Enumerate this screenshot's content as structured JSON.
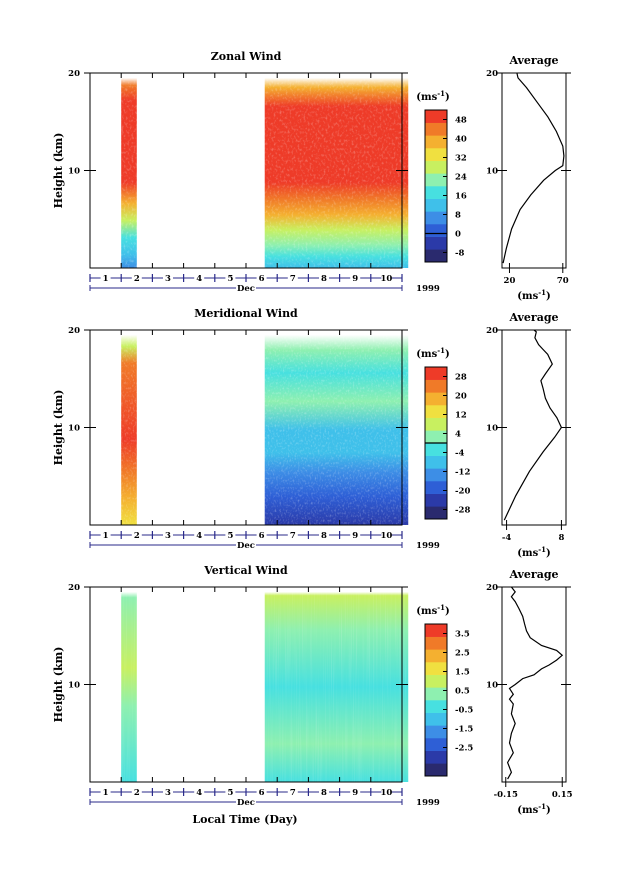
{
  "x_axis": {
    "day_ticks": [
      "1",
      "2",
      "3",
      "4",
      "5",
      "6",
      "7",
      "8",
      "9",
      "10"
    ],
    "month": "Dec",
    "year": "1999",
    "xlabel": "Local Time (Day)"
  },
  "chart_data": [
    {
      "type": "heatmap",
      "title": "Zonal Wind",
      "ylabel": "Height (km)",
      "yticks": [
        "10",
        "20"
      ],
      "ylim": [
        0,
        20
      ],
      "data_blocks_days": [
        [
          1.0,
          1.5
        ],
        [
          5.6,
          10.2
        ]
      ],
      "colorbar": {
        "unit_label": "(ms",
        "unit_exp": "-1",
        "unit_close": ")",
        "ticks": [
          "48",
          "40",
          "32",
          "24",
          "16",
          "8",
          "0",
          "-8"
        ],
        "range": [
          -12,
          52
        ],
        "zero_contour": 0
      },
      "average_profile": {
        "title": "Average",
        "xticks": [
          "20",
          "70"
        ],
        "xlim": [
          13,
          73
        ],
        "xlabel": "(ms",
        "xlabel_exp": "-1",
        "xlabel_close": ")",
        "yticks": [
          "10",
          "20"
        ],
        "points": [
          [
            14,
            0.5
          ],
          [
            17,
            2
          ],
          [
            22,
            4
          ],
          [
            30,
            6
          ],
          [
            40,
            7.5
          ],
          [
            52,
            9
          ],
          [
            63,
            10
          ],
          [
            70,
            10.5
          ],
          [
            71,
            11.5
          ],
          [
            70,
            12.5
          ],
          [
            64,
            14
          ],
          [
            56,
            15.5
          ],
          [
            46,
            17
          ],
          [
            36,
            18.5
          ],
          [
            28,
            19.5
          ],
          [
            27,
            20
          ]
        ]
      }
    },
    {
      "type": "heatmap",
      "title": "Meridional Wind",
      "ylabel": "Height (km)",
      "yticks": [
        "10",
        "20"
      ],
      "ylim": [
        0,
        20
      ],
      "data_blocks_days": [
        [
          1.0,
          1.5
        ],
        [
          5.6,
          10.2
        ]
      ],
      "colorbar": {
        "unit_label": "(ms",
        "unit_exp": "-1",
        "unit_close": ")",
        "ticks": [
          "28",
          "20",
          "12",
          "4",
          "-4",
          "-12",
          "-20",
          "-28"
        ],
        "range": [
          -32,
          32
        ],
        "zero_contour": 0
      },
      "average_profile": {
        "title": "Average",
        "xticks": [
          "-4",
          "8"
        ],
        "xlim": [
          -5,
          9
        ],
        "xlabel": "(ms",
        "xlabel_exp": "-1",
        "xlabel_close": ")",
        "yticks": [
          "10",
          "20"
        ],
        "points": [
          [
            -4.5,
            0.5
          ],
          [
            -2,
            3
          ],
          [
            1,
            5.5
          ],
          [
            4,
            7.5
          ],
          [
            6.5,
            9
          ],
          [
            8,
            10
          ],
          [
            7,
            11
          ],
          [
            5.5,
            12
          ],
          [
            4.5,
            13
          ],
          [
            4,
            14
          ],
          [
            3.5,
            14.8
          ],
          [
            4.5,
            15.5
          ],
          [
            6,
            16.5
          ],
          [
            5,
            17.5
          ],
          [
            4,
            18
          ],
          [
            3,
            18.5
          ],
          [
            2.2,
            19.2
          ],
          [
            2.5,
            19.8
          ],
          [
            2,
            20
          ]
        ]
      }
    },
    {
      "type": "heatmap",
      "title": "Vertical Wind",
      "ylabel": "Height (km)",
      "yticks": [
        "10",
        "20"
      ],
      "ylim": [
        0,
        20
      ],
      "data_blocks_days": [
        [
          1.0,
          1.5
        ],
        [
          5.6,
          10.2
        ]
      ],
      "colorbar": {
        "unit_label": "(ms",
        "unit_exp": "-1",
        "unit_close": ")",
        "ticks": [
          "3.5",
          "2.5",
          "1.5",
          "0.5",
          "-0.5",
          "-1.5",
          "-2.5"
        ],
        "range": [
          -4,
          4
        ]
      },
      "average_profile": {
        "title": "Average",
        "xticks": [
          "-0.15",
          "0.15"
        ],
        "xlim": [
          -0.17,
          0.17
        ],
        "xlabel": "(ms",
        "xlabel_exp": "-1",
        "xlabel_close": ")",
        "yticks": [
          "10",
          "20"
        ],
        "points": [
          [
            -0.14,
            0.3
          ],
          [
            -0.12,
            1
          ],
          [
            -0.14,
            2
          ],
          [
            -0.11,
            3
          ],
          [
            -0.13,
            4
          ],
          [
            -0.12,
            5
          ],
          [
            -0.1,
            6
          ],
          [
            -0.12,
            7
          ],
          [
            -0.11,
            8
          ],
          [
            -0.13,
            8.5
          ],
          [
            -0.11,
            9
          ],
          [
            -0.13,
            9.6
          ],
          [
            -0.1,
            10
          ],
          [
            -0.06,
            10.6
          ],
          [
            0.0,
            11
          ],
          [
            0.04,
            11.6
          ],
          [
            0.08,
            12
          ],
          [
            0.12,
            12.5
          ],
          [
            0.15,
            13
          ],
          [
            0.12,
            13.5
          ],
          [
            0.04,
            14
          ],
          [
            -0.02,
            14.8
          ],
          [
            -0.04,
            15.5
          ],
          [
            -0.05,
            16.2
          ],
          [
            -0.06,
            17
          ],
          [
            -0.08,
            17.8
          ],
          [
            -0.1,
            18.5
          ],
          [
            -0.12,
            19
          ],
          [
            -0.1,
            19.5
          ],
          [
            -0.12,
            20
          ]
        ]
      }
    }
  ]
}
